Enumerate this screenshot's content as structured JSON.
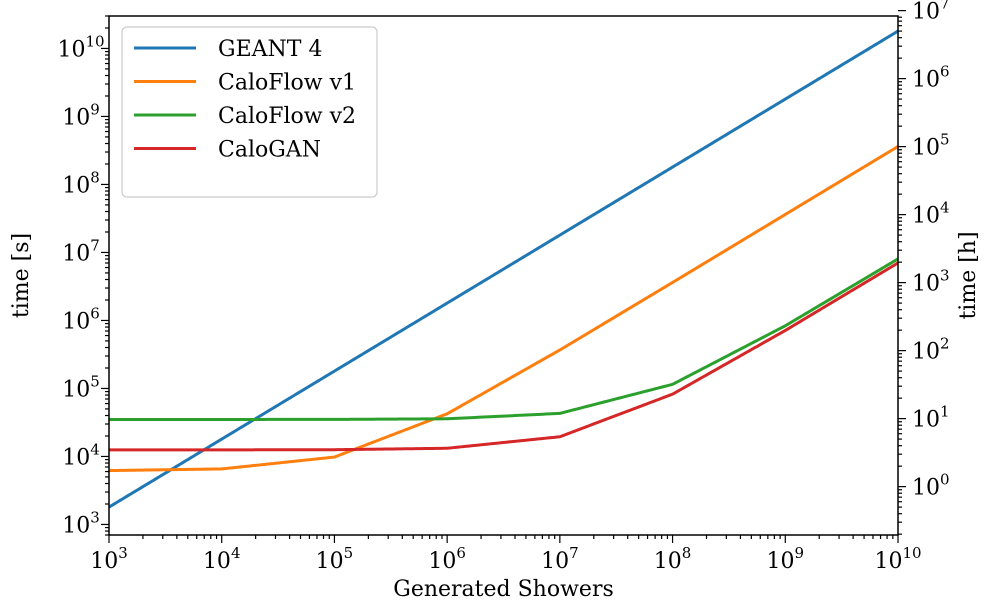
{
  "chart_data": {
    "type": "line",
    "xlabel": "Generated Showers",
    "ylabel": "time [s]",
    "ylabel_right": "time [h]",
    "xscale": "log",
    "yscale": "log",
    "xlim": [
      1000,
      10000000000
    ],
    "ylim": [
      700,
      30000000000
    ],
    "ylim_right_hours": [
      0.1944,
      8333333
    ],
    "grid": false,
    "legend_position": "top-left",
    "x_ticks": [
      {
        "base": "10",
        "exp": "3",
        "value": 1000
      },
      {
        "base": "10",
        "exp": "4",
        "value": 10000
      },
      {
        "base": "10",
        "exp": "5",
        "value": 100000
      },
      {
        "base": "10",
        "exp": "6",
        "value": 1000000
      },
      {
        "base": "10",
        "exp": "7",
        "value": 10000000
      },
      {
        "base": "10",
        "exp": "8",
        "value": 100000000
      },
      {
        "base": "10",
        "exp": "9",
        "value": 1000000000
      },
      {
        "base": "10",
        "exp": "10",
        "value": 10000000000
      }
    ],
    "y_ticks": [
      {
        "base": "10",
        "exp": "3",
        "value": 1000
      },
      {
        "base": "10",
        "exp": "4",
        "value": 10000
      },
      {
        "base": "10",
        "exp": "5",
        "value": 100000
      },
      {
        "base": "10",
        "exp": "6",
        "value": 1000000
      },
      {
        "base": "10",
        "exp": "7",
        "value": 10000000
      },
      {
        "base": "10",
        "exp": "8",
        "value": 100000000
      },
      {
        "base": "10",
        "exp": "9",
        "value": 1000000000
      },
      {
        "base": "10",
        "exp": "10",
        "value": 10000000000
      }
    ],
    "y_ticks_right": [
      {
        "base": "10",
        "exp": "0",
        "value": 1
      },
      {
        "base": "10",
        "exp": "1",
        "value": 10
      },
      {
        "base": "10",
        "exp": "2",
        "value": 100
      },
      {
        "base": "10",
        "exp": "3",
        "value": 1000
      },
      {
        "base": "10",
        "exp": "4",
        "value": 10000
      },
      {
        "base": "10",
        "exp": "5",
        "value": 100000
      },
      {
        "base": "10",
        "exp": "6",
        "value": 1000000
      },
      {
        "base": "10",
        "exp": "7",
        "value": 10000000
      }
    ],
    "x": [
      1000,
      10000,
      100000,
      1000000,
      10000000,
      100000000,
      1000000000,
      10000000000
    ],
    "series": [
      {
        "name": "GEANT 4",
        "color": "#1f77b4",
        "values": [
          1800,
          18000,
          180000,
          1800000,
          18000000,
          180000000,
          1800000000,
          18000000000
        ]
      },
      {
        "name": "CaloFlow v1",
        "color": "#ff7f0e",
        "values": [
          6200,
          6560,
          9800,
          42400,
          368000,
          3620000,
          36200000,
          362000000
        ]
      },
      {
        "name": "CaloFlow v2",
        "color": "#2ca02c",
        "values": [
          35000,
          35008,
          35080,
          35800,
          43000,
          115000,
          835000,
          8035000
        ]
      },
      {
        "name": "CaloGAN",
        "color": "#d62728",
        "values": [
          12500,
          12507,
          12570,
          13200,
          19500,
          82500,
          712500,
          7012500
        ]
      }
    ]
  }
}
